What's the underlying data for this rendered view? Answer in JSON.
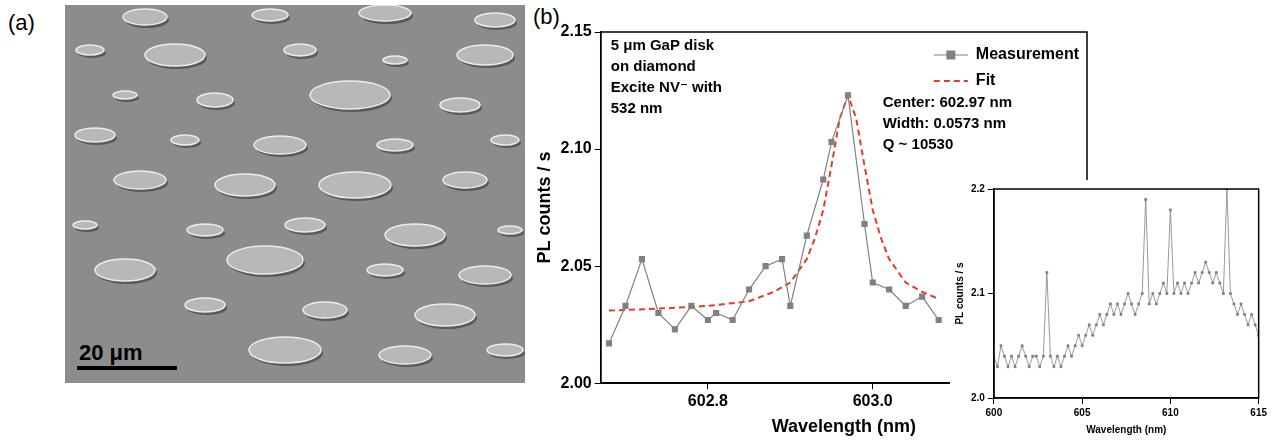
{
  "panel_labels": [
    "(a)",
    "(b)"
  ],
  "scale_bar_label": "20 μm",
  "chart_data": [
    {
      "type": "line",
      "x_label": "Wavelength (nm)",
      "y_label": "PL counts / s",
      "annotations": [
        [
          "5 μm GaP disk",
          "on diamond",
          "Excite NV⁻ with",
          "532 nm"
        ],
        [
          "Center: 602.97 nm",
          "Width: 0.0573 nm",
          "Q ~ 10530"
        ]
      ],
      "series": [
        {
          "name": "Measurement",
          "color": "#808080",
          "marker": "square",
          "line_style": "solid",
          "x": [
            602.68,
            602.7,
            602.72,
            602.74,
            602.76,
            602.78,
            602.8,
            602.81,
            602.83,
            602.85,
            602.87,
            602.89,
            602.9,
            602.92,
            602.94,
            602.95,
            602.97,
            602.99,
            603.0,
            603.02,
            603.04,
            603.06,
            603.08
          ],
          "values": [
            2.017,
            2.033,
            2.053,
            2.03,
            2.023,
            2.033,
            2.027,
            2.03,
            2.027,
            2.04,
            2.05,
            2.053,
            2.033,
            2.063,
            2.087,
            2.103,
            2.123,
            2.068,
            2.043,
            2.04,
            2.033,
            2.037,
            2.027
          ]
        },
        {
          "name": "Fit",
          "color": "#e8392c",
          "marker": "none",
          "line_style": "dashed",
          "x": [
            602.68,
            602.75,
            602.8,
            602.85,
            602.88,
            602.9,
            602.92,
            602.93,
            602.94,
            602.95,
            602.96,
            602.97,
            602.98,
            602.99,
            603.0,
            603.01,
            603.02,
            603.04,
            603.06,
            603.08
          ],
          "values": [
            2.031,
            2.032,
            2.033,
            2.035,
            2.039,
            2.043,
            2.053,
            2.062,
            2.074,
            2.093,
            2.113,
            2.123,
            2.113,
            2.093,
            2.074,
            2.062,
            2.053,
            2.043,
            2.039,
            2.036
          ]
        }
      ],
      "xlim": [
        602.67,
        603.26
      ],
      "xticks": [
        602.8,
        {
          "value": 603,
          "label": "603.0"
        }
      ],
      "ylim": [
        2,
        2.15
      ],
      "yticks": [
        {
          "value": 2,
          "label": "2.00"
        },
        2.05,
        {
          "value": 2.1,
          "label": "2.10"
        },
        2.15
      ],
      "grid": false,
      "legend": "upper right"
    },
    {
      "type": "line",
      "x_label": "Wavelength (nm)",
      "y_label": "PL counts / s",
      "series": [
        {
          "color": "#808080",
          "marker": "square",
          "line_style": "solid",
          "x": [
            600,
            600.2,
            600.4,
            600.6,
            600.8,
            601,
            601.2,
            601.4,
            601.6,
            601.8,
            602,
            602.2,
            602.4,
            602.6,
            602.8,
            603,
            603.2,
            603.4,
            603.6,
            603.8,
            604,
            604.2,
            604.4,
            604.6,
            604.8,
            605,
            605.2,
            605.4,
            605.6,
            605.8,
            606,
            606.2,
            606.4,
            606.6,
            606.8,
            607,
            607.2,
            607.4,
            607.6,
            607.8,
            608,
            608.2,
            608.4,
            608.6,
            608.8,
            609,
            609.2,
            609.4,
            609.6,
            609.8,
            610,
            610.2,
            610.4,
            610.6,
            610.8,
            611,
            611.2,
            611.4,
            611.6,
            611.8,
            612,
            612.2,
            612.4,
            612.6,
            612.8,
            613,
            613.2,
            613.4,
            613.6,
            613.8,
            614,
            614.2,
            614.4,
            614.6,
            614.8,
            615
          ],
          "values": [
            2.04,
            2.03,
            2.05,
            2.04,
            2.03,
            2.04,
            2.03,
            2.04,
            2.05,
            2.04,
            2.03,
            2.04,
            2.04,
            2.03,
            2.04,
            2.12,
            2.04,
            2.03,
            2.04,
            2.03,
            2.04,
            2.05,
            2.04,
            2.05,
            2.06,
            2.05,
            2.06,
            2.07,
            2.06,
            2.07,
            2.08,
            2.07,
            2.08,
            2.09,
            2.08,
            2.09,
            2.08,
            2.09,
            2.1,
            2.09,
            2.08,
            2.09,
            2.1,
            2.19,
            2.09,
            2.1,
            2.09,
            2.1,
            2.11,
            2.1,
            2.18,
            2.1,
            2.11,
            2.1,
            2.11,
            2.1,
            2.11,
            2.12,
            2.11,
            2.12,
            2.13,
            2.12,
            2.11,
            2.12,
            2.11,
            2.1,
            2.2,
            2.1,
            2.09,
            2.08,
            2.09,
            2.08,
            2.07,
            2.08,
            2.07,
            2.06
          ]
        }
      ],
      "xlim": [
        600,
        615
      ],
      "xticks": [
        600,
        605,
        610,
        615
      ],
      "ylim": [
        2,
        2.2
      ],
      "yticks": [
        {
          "value": 2,
          "label": "2.0"
        },
        {
          "value": 2.1,
          "label": "2.1"
        },
        {
          "value": 2.2,
          "label": "2.2"
        }
      ],
      "grid": false
    }
  ]
}
